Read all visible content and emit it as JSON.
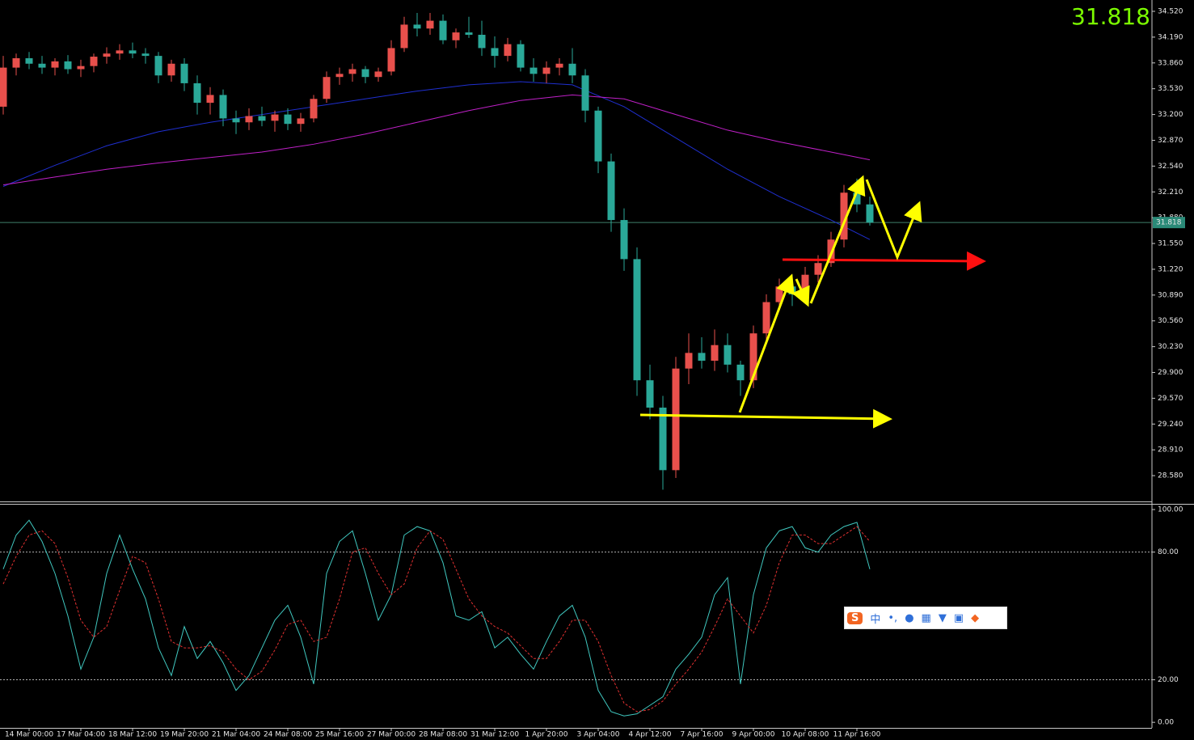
{
  "chart_data": {
    "type": "candlestick",
    "categories": [
      null,
      null,
      "14 Mar 00:00",
      null,
      null,
      null,
      "17 Mar 04:00",
      null,
      null,
      null,
      "18 Mar 12:00",
      null,
      null,
      null,
      "19 Mar 20:00",
      null,
      null,
      null,
      "21 Mar 04:00",
      null,
      null,
      null,
      "24 Mar 08:00",
      null,
      null,
      null,
      "25 Mar 16:00",
      null,
      null,
      null,
      "27 Mar 00:00",
      null,
      null,
      null,
      "28 Mar 08:00",
      null,
      null,
      null,
      "31 Mar 12:00",
      null,
      null,
      null,
      "1 Apr 20:00",
      null,
      null,
      null,
      "3 Apr 04:00",
      null,
      null,
      null,
      "4 Apr 12:00",
      null,
      null,
      null,
      "7 Apr 16:00",
      null,
      null,
      null,
      "9 Apr 00:00",
      null,
      null,
      null,
      "10 Apr 08:00",
      null,
      null,
      null,
      "11 Apr 16:00",
      null
    ],
    "open": [
      33.3,
      33.8,
      33.92,
      33.85,
      33.8,
      33.88,
      33.78,
      33.82,
      33.94,
      33.98,
      34.02,
      33.98,
      33.95,
      33.7,
      33.85,
      33.6,
      33.35,
      33.45,
      33.15,
      33.1,
      33.18,
      33.12,
      33.2,
      33.08,
      33.15,
      33.4,
      33.68,
      33.72,
      33.78,
      33.68,
      33.75,
      34.05,
      34.35,
      34.3,
      34.4,
      34.15,
      34.25,
      34.22,
      34.05,
      33.95,
      34.1,
      33.8,
      33.72,
      33.8,
      33.85,
      33.7,
      33.25,
      32.6,
      31.85,
      31.35,
      29.8,
      29.45,
      28.65,
      29.95,
      30.15,
      30.05,
      30.25,
      30.0,
      29.8,
      30.4,
      30.8,
      31.0,
      30.9,
      31.15,
      31.3,
      31.6,
      32.2,
      32.05
    ],
    "high": [
      33.95,
      33.98,
      34.0,
      33.95,
      33.92,
      33.96,
      33.9,
      33.98,
      34.06,
      34.1,
      34.12,
      34.05,
      34.0,
      33.9,
      33.92,
      33.7,
      33.55,
      33.52,
      33.25,
      33.28,
      33.3,
      33.25,
      33.28,
      33.22,
      33.45,
      33.75,
      33.8,
      33.85,
      33.82,
      33.8,
      34.15,
      34.45,
      34.5,
      34.5,
      34.48,
      34.3,
      34.45,
      34.4,
      34.2,
      34.18,
      34.15,
      33.92,
      33.88,
      33.92,
      34.05,
      33.78,
      33.3,
      32.7,
      32.0,
      31.5,
      30.0,
      29.6,
      30.1,
      30.4,
      30.35,
      30.45,
      30.4,
      30.05,
      30.5,
      30.9,
      31.1,
      31.15,
      31.25,
      31.4,
      31.7,
      32.3,
      32.38,
      32.15
    ],
    "low": [
      33.2,
      33.7,
      33.78,
      33.72,
      33.7,
      33.72,
      33.68,
      33.74,
      33.85,
      33.9,
      33.92,
      33.85,
      33.6,
      33.62,
      33.5,
      33.2,
      33.2,
      33.05,
      32.95,
      33.0,
      33.05,
      32.98,
      33.0,
      32.98,
      33.1,
      33.35,
      33.58,
      33.62,
      33.6,
      33.62,
      33.7,
      34.0,
      34.2,
      34.22,
      34.1,
      34.05,
      34.18,
      33.95,
      33.8,
      33.88,
      33.75,
      33.62,
      33.6,
      33.7,
      33.6,
      33.1,
      32.45,
      31.7,
      31.2,
      29.6,
      29.3,
      28.4,
      28.55,
      29.75,
      29.95,
      29.92,
      29.9,
      29.6,
      29.7,
      30.3,
      30.7,
      30.75,
      30.8,
      31.05,
      31.25,
      31.5,
      31.95,
      31.78
    ],
    "close": [
      33.8,
      33.92,
      33.85,
      33.8,
      33.88,
      33.78,
      33.82,
      33.94,
      33.98,
      34.02,
      33.98,
      33.95,
      33.7,
      33.85,
      33.6,
      33.35,
      33.45,
      33.15,
      33.1,
      33.18,
      33.12,
      33.2,
      33.08,
      33.15,
      33.4,
      33.68,
      33.72,
      33.78,
      33.68,
      33.75,
      34.05,
      34.35,
      34.3,
      34.4,
      34.15,
      34.25,
      34.22,
      34.05,
      33.95,
      34.1,
      33.8,
      33.72,
      33.8,
      33.85,
      33.7,
      33.25,
      32.6,
      31.85,
      31.35,
      29.8,
      29.45,
      28.65,
      29.95,
      30.15,
      30.05,
      30.25,
      30.0,
      29.8,
      30.4,
      30.8,
      31.0,
      30.9,
      31.15,
      31.3,
      31.6,
      32.2,
      32.05,
      31.818
    ],
    "up_color": "#e8504c",
    "down_color": "#2aa898",
    "overlays": [
      {
        "color": "#1f2fd0",
        "x": [
          0,
          4,
          8,
          12,
          16,
          20,
          24,
          28,
          32,
          36,
          40,
          44,
          48,
          52,
          56,
          60,
          64,
          67
        ],
        "values": [
          32.28,
          32.55,
          32.8,
          32.98,
          33.1,
          33.2,
          33.3,
          33.4,
          33.5,
          33.58,
          33.62,
          33.58,
          33.3,
          32.9,
          32.5,
          32.15,
          31.85,
          31.6
        ]
      },
      {
        "color": "#c020c8",
        "x": [
          0,
          4,
          8,
          12,
          16,
          20,
          24,
          28,
          32,
          36,
          40,
          44,
          48,
          52,
          56,
          60,
          64,
          67
        ],
        "values": [
          32.3,
          32.4,
          32.5,
          32.58,
          32.65,
          32.72,
          32.82,
          32.95,
          33.1,
          33.25,
          33.38,
          33.45,
          33.4,
          33.2,
          33.0,
          32.85,
          32.72,
          32.62
        ]
      }
    ],
    "current_price": 31.818,
    "ylim": [
      28.25,
      34.665
    ],
    "yticks": [
      {
        "value": 34.52,
        "label": "34.520"
      },
      {
        "value": 34.19,
        "label": "34.190"
      },
      {
        "value": 33.86,
        "label": "33.860"
      },
      {
        "value": 33.53,
        "label": "33.530"
      },
      {
        "value": 33.2,
        "label": "33.200"
      },
      {
        "value": 32.87,
        "label": "32.870"
      },
      {
        "value": 32.54,
        "label": "32.540"
      },
      {
        "value": 32.21,
        "label": "32.210"
      },
      {
        "value": 31.88,
        "label": "31.880"
      },
      {
        "value": 31.55,
        "label": "31.550"
      },
      {
        "value": 31.22,
        "label": "31.220"
      },
      {
        "value": 30.89,
        "label": "30.890"
      },
      {
        "value": 30.56,
        "label": "30.560"
      },
      {
        "value": 30.23,
        "label": "30.230"
      },
      {
        "value": 29.9,
        "label": "29.900"
      },
      {
        "value": 29.57,
        "label": "29.570"
      },
      {
        "value": 29.24,
        "label": "29.240"
      },
      {
        "value": 28.91,
        "label": "28.910"
      },
      {
        "value": 28.58,
        "label": "28.580"
      }
    ],
    "stochastic": {
      "ylim": [
        -2.6,
        102.3
      ],
      "yticks": [
        {
          "value": 100,
          "label": "100.00"
        },
        {
          "value": 80,
          "label": "80.00"
        },
        {
          "value": 20,
          "label": "20.00"
        },
        {
          "value": 0,
          "label": "0.00"
        }
      ],
      "levels": [
        80,
        20
      ],
      "series": [
        {
          "color": "#40c8c0",
          "dashed": false,
          "values": [
            72,
            88,
            95,
            85,
            70,
            50,
            25,
            40,
            70,
            88,
            72,
            58,
            35,
            22,
            45,
            30,
            38,
            28,
            15,
            22,
            35,
            48,
            55,
            40,
            18,
            70,
            85,
            90,
            70,
            48,
            60,
            88,
            92,
            90,
            75,
            50,
            48,
            52,
            35,
            40,
            32,
            25,
            38,
            50,
            55,
            40,
            15,
            5,
            3,
            4,
            8,
            12,
            25,
            32,
            40,
            60,
            68,
            18,
            60,
            82,
            90,
            92,
            82,
            80,
            88,
            92,
            94,
            72
          ]
        },
        {
          "color": "#e03030",
          "dashed": true,
          "values": [
            65,
            78,
            88,
            90,
            84,
            68,
            48,
            40,
            45,
            62,
            78,
            75,
            58,
            38,
            35,
            35,
            36,
            33,
            25,
            20,
            24,
            34,
            46,
            48,
            38,
            40,
            58,
            80,
            82,
            70,
            60,
            65,
            82,
            90,
            86,
            72,
            58,
            50,
            45,
            42,
            36,
            30,
            30,
            38,
            48,
            48,
            38,
            22,
            9,
            5,
            6,
            10,
            18,
            25,
            33,
            45,
            58,
            50,
            42,
            55,
            75,
            88,
            88,
            84,
            84,
            88,
            92,
            85
          ]
        }
      ]
    }
  },
  "ime_toolbar": {
    "label": "中"
  }
}
